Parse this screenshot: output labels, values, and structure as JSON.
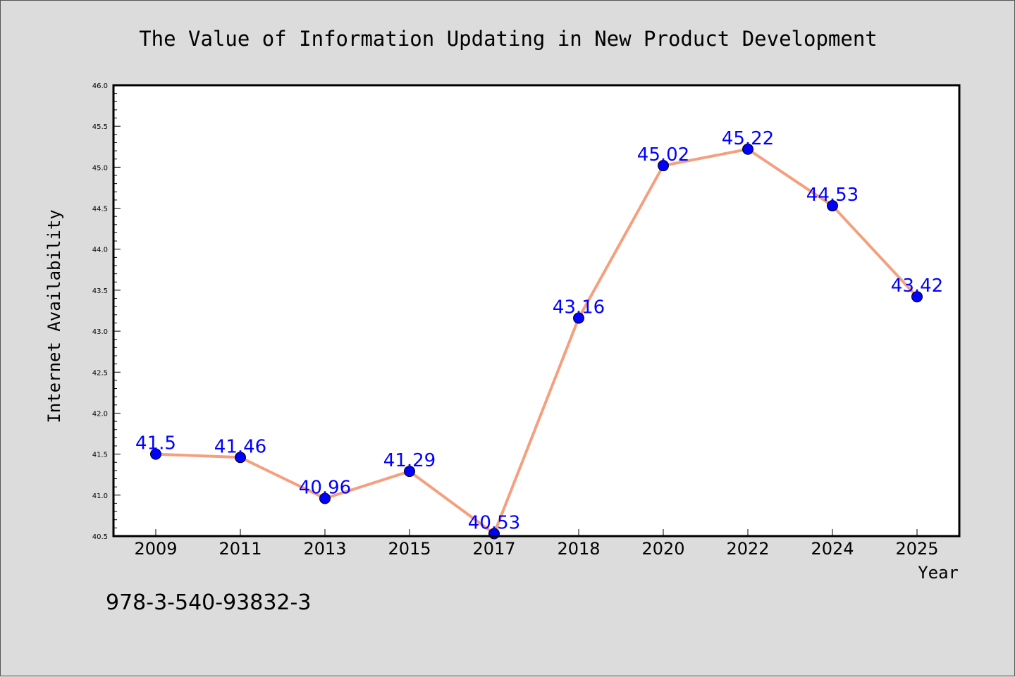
{
  "chart_data": {
    "type": "line",
    "title": "The Value of Information Updating in New Product Development",
    "xlabel": "Year",
    "ylabel": "Internet Availability",
    "categories": [
      "2009",
      "2011",
      "2013",
      "2015",
      "2017",
      "2018",
      "2020",
      "2022",
      "2024",
      "2025"
    ],
    "series": [
      {
        "values": [
          41.5,
          41.46,
          40.96,
          41.29,
          40.53,
          43.16,
          45.02,
          45.22,
          44.53,
          43.42
        ]
      }
    ],
    "data_labels": [
      "41.5",
      "41.46",
      "40.96",
      "41.29",
      "40.53",
      "43.16",
      "45.02",
      "45.22",
      "44.53",
      "43.42"
    ],
    "ylim": [
      40.5,
      46.0
    ],
    "yticks": [
      "40.5",
      "41.0",
      "41.5",
      "42.0",
      "42.5",
      "43.0",
      "43.5",
      "44.0",
      "44.5",
      "45.0",
      "45.5",
      "46.0"
    ],
    "grid": false,
    "legend": "none",
    "colors": {
      "line": "#f4a07f",
      "marker": "#0000ff",
      "data_label": "#0000ff",
      "plot_background": "#ffffff",
      "figure_background": "#dcdcdc"
    }
  },
  "footer": {
    "isbn": "978-3-540-93832-3"
  }
}
